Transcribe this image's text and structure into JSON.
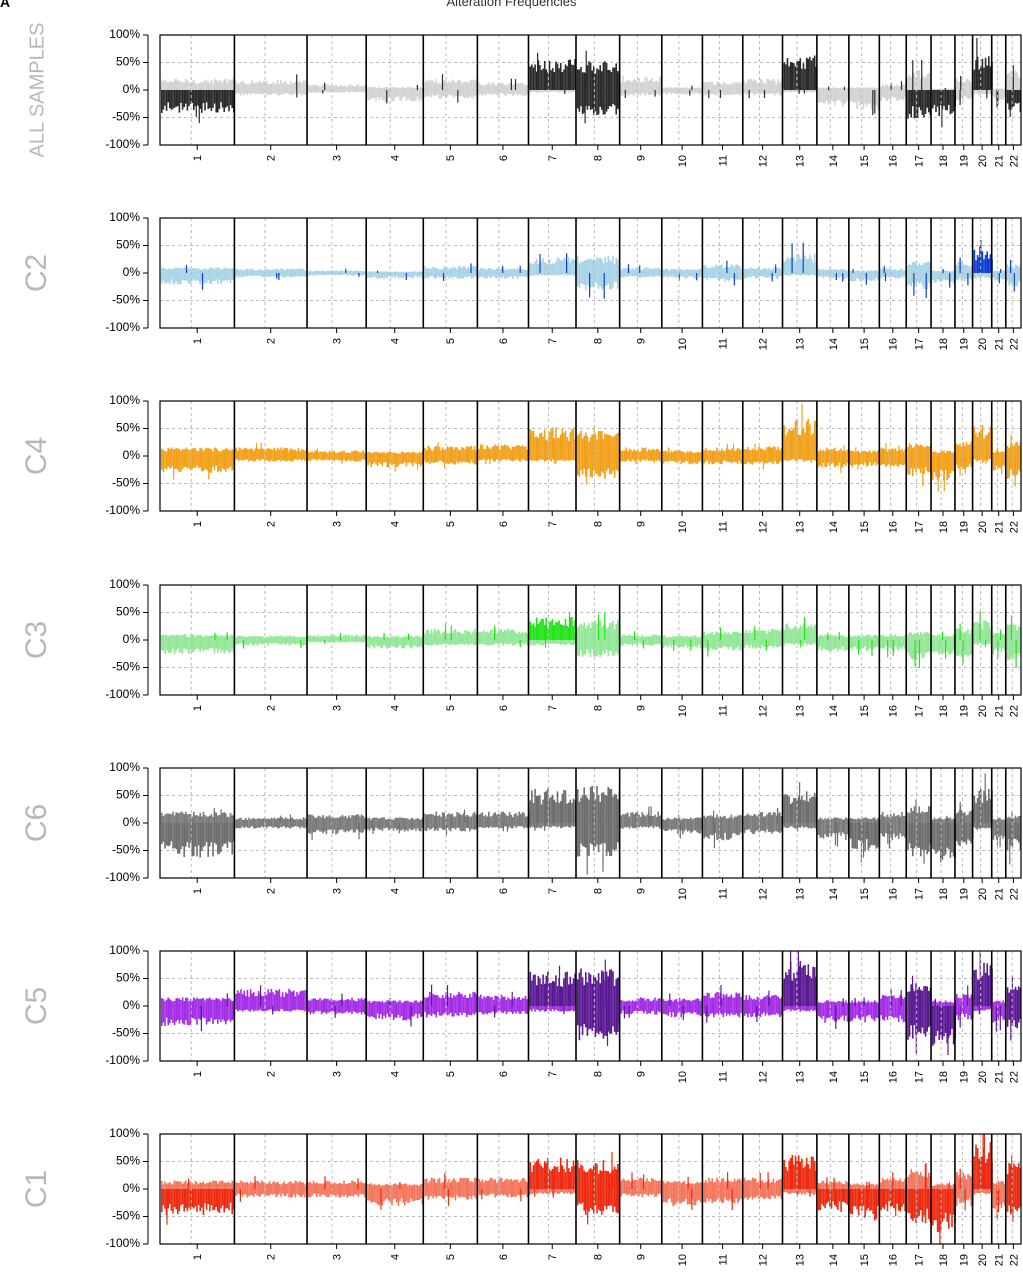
{
  "figure": {
    "title": "Alteration Frequencies",
    "panel_label": "A"
  },
  "chart_data": {
    "type": "area",
    "description_of_axes": "y = alteration frequency (% of samples), positive = gain, negative = loss",
    "ylim": [
      -100,
      100
    ],
    "yticks": [
      100,
      50,
      0,
      -50,
      -100
    ],
    "ytick_labels": [
      "100%",
      "50%",
      "0%",
      "-50%",
      "-100%"
    ],
    "grid": true,
    "chromosomes": [
      "1",
      "2",
      "3",
      "4",
      "5",
      "6",
      "7",
      "8",
      "9",
      "10",
      "11",
      "12",
      "13",
      "14",
      "15",
      "16",
      "17",
      "18",
      "19",
      "20",
      "21",
      "22"
    ],
    "chromosome_lengths_mb": [
      249,
      243,
      198,
      191,
      181,
      171,
      159,
      146,
      141,
      136,
      135,
      133,
      115,
      107,
      102,
      90,
      83,
      80,
      59,
      64,
      47,
      51
    ],
    "panels": [
      {
        "name": "ALL SAMPLES",
        "gain_color": "#2b2b2b",
        "light_color": "#d3d3d3",
        "gain": [
          20,
          18,
          10,
          6,
          20,
          14,
          55,
          50,
          25,
          5,
          15,
          20,
          60,
          5,
          5,
          10,
          35,
          3,
          20,
          60,
          3,
          35
        ],
        "loss": [
          -40,
          -10,
          -5,
          -20,
          -15,
          -10,
          -5,
          -45,
          -10,
          -8,
          -10,
          -10,
          -5,
          -30,
          -35,
          -20,
          -50,
          -45,
          -20,
          -10,
          -20,
          -40
        ]
      },
      {
        "name": "C2",
        "gain_color": "#0b3dd8",
        "light_color": "#a8d4e6",
        "gain": [
          10,
          8,
          5,
          3,
          12,
          10,
          28,
          30,
          10,
          8,
          15,
          10,
          35,
          8,
          5,
          8,
          20,
          5,
          20,
          40,
          5,
          15
        ],
        "loss": [
          -20,
          -8,
          -5,
          -10,
          -10,
          -10,
          -5,
          -30,
          -8,
          -10,
          -15,
          -10,
          -5,
          -10,
          -15,
          -10,
          -30,
          -20,
          -15,
          -10,
          -15,
          -25
        ]
      },
      {
        "name": "C4",
        "gain_color": "#f3a11a",
        "light_color": "#f3a11a",
        "gain": [
          15,
          15,
          10,
          8,
          18,
          20,
          50,
          45,
          15,
          10,
          15,
          18,
          65,
          15,
          10,
          15,
          25,
          10,
          25,
          55,
          10,
          25
        ],
        "loss": [
          -30,
          -10,
          -10,
          -20,
          -15,
          -10,
          -10,
          -40,
          -10,
          -15,
          -15,
          -15,
          -10,
          -20,
          -20,
          -20,
          -35,
          -45,
          -25,
          -10,
          -25,
          -40
        ]
      },
      {
        "name": "C3",
        "gain_color": "#22e41a",
        "light_color": "#93e897",
        "gain": [
          10,
          8,
          10,
          8,
          20,
          20,
          40,
          35,
          10,
          8,
          15,
          20,
          30,
          10,
          10,
          10,
          15,
          10,
          20,
          35,
          15,
          30
        ],
        "loss": [
          -25,
          -10,
          -5,
          -15,
          -10,
          -10,
          -10,
          -30,
          -10,
          -15,
          -20,
          -15,
          -10,
          -20,
          -20,
          -20,
          -35,
          -25,
          -30,
          -10,
          -25,
          -35
        ]
      },
      {
        "name": "C6",
        "gain_color": "#6e6e6e",
        "light_color": "#7a7a7a",
        "gain": [
          20,
          10,
          15,
          10,
          20,
          20,
          60,
          65,
          20,
          10,
          15,
          20,
          60,
          10,
          10,
          20,
          30,
          10,
          25,
          60,
          10,
          15
        ],
        "loss": [
          -60,
          -10,
          -20,
          -15,
          -15,
          -10,
          -10,
          -60,
          -10,
          -20,
          -30,
          -20,
          -10,
          -30,
          -50,
          -30,
          -60,
          -70,
          -40,
          -10,
          -30,
          -50
        ]
      },
      {
        "name": "C5",
        "gain_color": "#5b1a94",
        "light_color": "#a42de8",
        "gain": [
          15,
          30,
          15,
          10,
          25,
          20,
          60,
          65,
          15,
          15,
          25,
          20,
          80,
          10,
          10,
          20,
          40,
          10,
          25,
          85,
          10,
          40
        ],
        "loss": [
          -35,
          -10,
          -15,
          -25,
          -20,
          -15,
          -10,
          -60,
          -15,
          -20,
          -20,
          -20,
          -10,
          -30,
          -30,
          -30,
          -60,
          -70,
          -25,
          -10,
          -30,
          -40
        ]
      },
      {
        "name": "C1",
        "gain_color": "#ef2a0f",
        "light_color": "#f5765c",
        "gain": [
          15,
          15,
          15,
          10,
          20,
          20,
          55,
          50,
          20,
          15,
          20,
          20,
          60,
          15,
          10,
          20,
          35,
          10,
          30,
          85,
          15,
          50
        ],
        "loss": [
          -45,
          -15,
          -15,
          -30,
          -20,
          -15,
          -10,
          -45,
          -15,
          -30,
          -25,
          -20,
          -10,
          -40,
          -55,
          -40,
          -60,
          -75,
          -30,
          -10,
          -35,
          -45
        ]
      }
    ]
  }
}
